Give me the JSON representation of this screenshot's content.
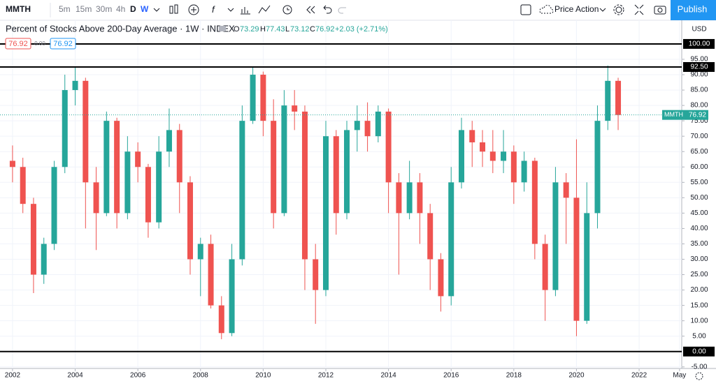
{
  "toolbar": {
    "symbol": "MMTH",
    "intervals": [
      "5m",
      "15m",
      "30m",
      "4h",
      "D",
      "W"
    ],
    "template": "Price Action",
    "publish": "Publish"
  },
  "legend": {
    "title": "Percent of Stocks Above 200-Day Average · 1W · INDEX",
    "open_prefix": "O",
    "open": "73.29",
    "high_prefix": "H",
    "high": "77.43",
    "low_prefix": "L",
    "low": "73.12",
    "close_prefix": "C",
    "close": "76.92",
    "change": "+2.03 (+2.71%)",
    "currency": "USD"
  },
  "order_boxes": [
    "76.92",
    "0.00",
    "76.92"
  ],
  "chart_data": {
    "type": "candlestick",
    "x": [
      2002,
      2002.33,
      2002.67,
      2003,
      2003.33,
      2003.67,
      2004,
      2004.33,
      2004.67,
      2005,
      2005.33,
      2005.67,
      2006,
      2006.33,
      2006.67,
      2007,
      2007.33,
      2007.67,
      2008,
      2008.33,
      2008.67,
      2009,
      2009.33,
      2009.67,
      2010,
      2010.33,
      2010.67,
      2011,
      2011.33,
      2011.67,
      2012,
      2012.33,
      2012.67,
      2013,
      2013.33,
      2013.67,
      2014,
      2014.33,
      2014.67,
      2015,
      2015.33,
      2015.67,
      2016,
      2016.33,
      2016.67,
      2017,
      2017.33,
      2017.67,
      2018,
      2018.33,
      2018.67,
      2019,
      2019.33,
      2019.67,
      2020,
      2020.33,
      2020.67,
      2021,
      2021.33
    ],
    "open": [
      62,
      60,
      48,
      25,
      35,
      60,
      85,
      88,
      55,
      45,
      75,
      45,
      65,
      60,
      42,
      65,
      72,
      55,
      30,
      35,
      15,
      6,
      30,
      75,
      90,
      75,
      45,
      80,
      78,
      30,
      20,
      70,
      45,
      72,
      75,
      70,
      78,
      55,
      45,
      55,
      45,
      30,
      18,
      55,
      72,
      68,
      65,
      62,
      65,
      55,
      62,
      35,
      20,
      55,
      50,
      10,
      45,
      75,
      88
    ],
    "high": [
      67,
      63,
      50,
      37,
      62,
      90,
      92.5,
      89,
      60,
      78,
      76,
      70,
      68,
      61,
      70,
      79,
      74,
      57,
      37,
      38,
      18,
      35,
      80,
      92.5,
      91,
      82,
      85,
      85,
      80,
      35,
      75,
      72,
      75,
      80,
      81,
      80,
      79,
      58,
      62,
      58,
      48,
      32,
      60,
      76,
      75,
      72,
      72,
      72,
      67,
      65,
      63,
      38,
      60,
      58,
      69,
      55,
      80,
      93,
      89
    ],
    "low": [
      55,
      45,
      19,
      22,
      33,
      58,
      80,
      40,
      33,
      44,
      40,
      43,
      55,
      37,
      40,
      60,
      45,
      25,
      18,
      14,
      4,
      5,
      28,
      74,
      70,
      40,
      44,
      72,
      20,
      9,
      18,
      38,
      43,
      65,
      65,
      68,
      45,
      25,
      43,
      35,
      20,
      13,
      15,
      53,
      60,
      60,
      58,
      58,
      48,
      52,
      30,
      10,
      18,
      35,
      5,
      9,
      40,
      72,
      72
    ],
    "close": [
      60,
      48,
      25,
      35,
      60,
      85,
      88,
      55,
      45,
      75,
      45,
      65,
      60,
      42,
      65,
      72,
      55,
      30,
      35,
      15,
      6,
      30,
      75,
      90,
      75,
      45,
      80,
      78,
      30,
      20,
      70,
      45,
      72,
      75,
      70,
      78,
      55,
      45,
      55,
      45,
      30,
      18,
      55,
      72,
      68,
      65,
      62,
      65,
      55,
      62,
      35,
      20,
      55,
      50,
      10,
      45,
      75,
      88,
      76.92
    ],
    "up_color": "#26a69a",
    "down_color": "#ef5350",
    "grid": true,
    "xlim": [
      2001.6,
      2023.36
    ],
    "ylim": [
      -5.5,
      107.7
    ],
    "xticks": [
      2002,
      2004,
      2006,
      2008,
      2010,
      2012,
      2014,
      2016,
      2018,
      2020,
      2022,
      {
        "value": 2023.29,
        "label": "May"
      }
    ],
    "yticks": [
      {
        "value": -5,
        "label": "-5.00"
      },
      {
        "value": 5,
        "label": "5.00"
      },
      {
        "value": 10,
        "label": "10.00"
      },
      {
        "value": 15,
        "label": "15.00"
      },
      {
        "value": 20,
        "label": "20.00"
      },
      {
        "value": 25,
        "label": "25.00"
      },
      {
        "value": 30,
        "label": "30.00"
      },
      {
        "value": 35,
        "label": "35.00"
      },
      {
        "value": 40,
        "label": "40.00"
      },
      {
        "value": 45,
        "label": "45.00"
      },
      {
        "value": 50,
        "label": "50.00"
      },
      {
        "value": 55,
        "label": "55.00"
      },
      {
        "value": 60,
        "label": "60.00"
      },
      {
        "value": 65,
        "label": "65.00"
      },
      {
        "value": 70,
        "label": "70.00"
      },
      {
        "value": 75,
        "label": "75.00"
      },
      {
        "value": 80,
        "label": "80.00"
      },
      {
        "value": 85,
        "label": "85.00"
      },
      {
        "value": 90,
        "label": "90.00"
      },
      {
        "value": 95,
        "label": "95.00"
      }
    ],
    "hlines": [
      {
        "value": 100,
        "label": "100.00"
      },
      {
        "value": 92.5,
        "label": "92.50"
      },
      {
        "value": 0,
        "label": "0.00"
      }
    ],
    "last": {
      "name": "MMTH",
      "value": 76.92,
      "label": "76.92"
    }
  }
}
